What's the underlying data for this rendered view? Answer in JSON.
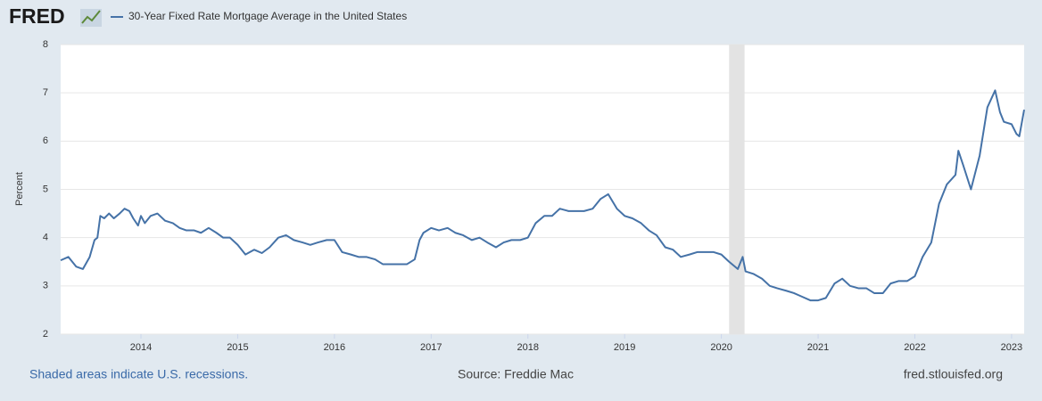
{
  "chart_data": {
    "type": "line",
    "logo": "FRED",
    "y_label": "Percent",
    "note": "Shaded areas indicate U.S. recessions.",
    "source": "Source: Freddie Mac",
    "site": "fred.stlouisfed.org",
    "x": [
      2013.17,
      2013.25,
      2013.33,
      2013.4,
      2013.47,
      2013.52,
      2013.55,
      2013.58,
      2013.62,
      2013.67,
      2013.72,
      2013.78,
      2013.83,
      2013.88,
      2013.92,
      2013.97,
      2014.0,
      2014.04,
      2014.1,
      2014.17,
      2014.25,
      2014.33,
      2014.4,
      2014.47,
      2014.55,
      2014.62,
      2014.7,
      2014.78,
      2014.85,
      2014.92,
      2015.0,
      2015.08,
      2015.17,
      2015.25,
      2015.33,
      2015.42,
      2015.5,
      2015.58,
      2015.67,
      2015.75,
      2015.83,
      2015.92,
      2016.0,
      2016.08,
      2016.17,
      2016.25,
      2016.33,
      2016.42,
      2016.5,
      2016.58,
      2016.67,
      2016.75,
      2016.83,
      2016.88,
      2016.92,
      2017.0,
      2017.08,
      2017.17,
      2017.25,
      2017.33,
      2017.42,
      2017.5,
      2017.58,
      2017.67,
      2017.75,
      2017.83,
      2017.92,
      2018.0,
      2018.08,
      2018.17,
      2018.25,
      2018.33,
      2018.42,
      2018.5,
      2018.58,
      2018.67,
      2018.75,
      2018.83,
      2018.92,
      2019.0,
      2019.08,
      2019.17,
      2019.25,
      2019.33,
      2019.42,
      2019.5,
      2019.58,
      2019.67,
      2019.75,
      2019.83,
      2019.92,
      2020.0,
      2020.08,
      2020.17,
      2020.22,
      2020.25,
      2020.33,
      2020.42,
      2020.5,
      2020.58,
      2020.67,
      2020.75,
      2020.83,
      2020.92,
      2021.0,
      2021.08,
      2021.17,
      2021.25,
      2021.33,
      2021.42,
      2021.5,
      2021.58,
      2021.67,
      2021.75,
      2021.83,
      2021.92,
      2022.0,
      2022.08,
      2022.17,
      2022.25,
      2022.33,
      2022.42,
      2022.45,
      2022.5,
      2022.58,
      2022.67,
      2022.75,
      2022.83,
      2022.88,
      2022.92,
      2023.0,
      2023.05,
      2023.08,
      2023.13
    ],
    "series": [
      {
        "name": "30-Year Fixed Rate Mortgage Average in the United States",
        "color": "#4572a7",
        "values": [
          3.53,
          3.6,
          3.4,
          3.35,
          3.6,
          3.95,
          4.0,
          4.45,
          4.4,
          4.5,
          4.4,
          4.5,
          4.6,
          4.55,
          4.4,
          4.25,
          4.45,
          4.3,
          4.45,
          4.5,
          4.35,
          4.3,
          4.2,
          4.15,
          4.15,
          4.1,
          4.2,
          4.1,
          4.0,
          4.0,
          3.85,
          3.65,
          3.75,
          3.68,
          3.8,
          4.0,
          4.05,
          3.95,
          3.9,
          3.85,
          3.9,
          3.95,
          3.95,
          3.7,
          3.65,
          3.6,
          3.6,
          3.55,
          3.45,
          3.45,
          3.45,
          3.45,
          3.55,
          3.95,
          4.1,
          4.2,
          4.15,
          4.2,
          4.1,
          4.05,
          3.95,
          4.0,
          3.9,
          3.8,
          3.9,
          3.95,
          3.95,
          4.0,
          4.3,
          4.45,
          4.45,
          4.6,
          4.55,
          4.55,
          4.55,
          4.6,
          4.8,
          4.9,
          4.6,
          4.45,
          4.4,
          4.3,
          4.15,
          4.05,
          3.8,
          3.75,
          3.6,
          3.65,
          3.7,
          3.7,
          3.7,
          3.65,
          3.5,
          3.35,
          3.6,
          3.3,
          3.25,
          3.15,
          3.0,
          2.95,
          2.9,
          2.85,
          2.78,
          2.7,
          2.7,
          2.75,
          3.05,
          3.15,
          3.0,
          2.95,
          2.95,
          2.85,
          2.85,
          3.05,
          3.1,
          3.1,
          3.2,
          3.6,
          3.9,
          4.7,
          5.1,
          5.3,
          5.8,
          5.5,
          5.0,
          5.7,
          6.7,
          7.05,
          6.6,
          6.4,
          6.35,
          6.15,
          6.1,
          6.65
        ]
      }
    ],
    "recessions": [
      [
        2020.08,
        2020.24
      ]
    ],
    "xlim": [
      2013.17,
      2023.13
    ],
    "xticks": [
      2014,
      2015,
      2016,
      2017,
      2018,
      2019,
      2020,
      2021,
      2022,
      2023
    ],
    "ylim": [
      2,
      8
    ],
    "yticks": [
      2,
      3,
      4,
      5,
      6,
      7,
      8
    ],
    "grid": true
  }
}
